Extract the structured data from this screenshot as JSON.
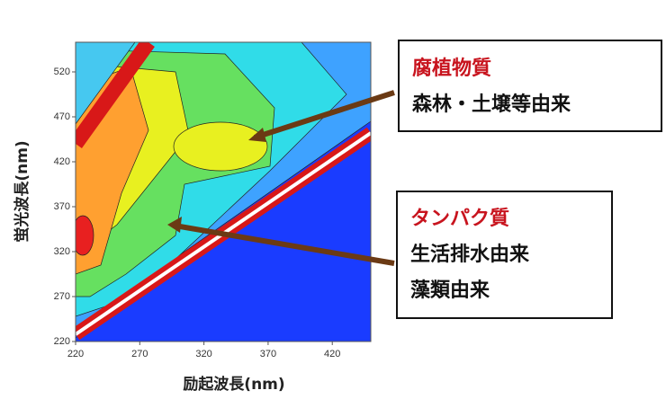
{
  "chart_data": {
    "type": "contour",
    "xlabel": "励起波長(nm)",
    "ylabel": "蛍光波長(nm)",
    "xlim": [
      220,
      450
    ],
    "ylim": [
      220,
      553
    ],
    "xticks": [
      220,
      270,
      320,
      370,
      420
    ],
    "yticks": [
      220,
      270,
      320,
      370,
      420,
      470,
      520
    ],
    "annotations": [
      {
        "title": "腐植物質",
        "lines": [
          "森林・土壌等由来"
        ]
      },
      {
        "title": "タンパク質",
        "lines": [
          "生活排水由来",
          "藻類由来"
        ]
      }
    ]
  }
}
